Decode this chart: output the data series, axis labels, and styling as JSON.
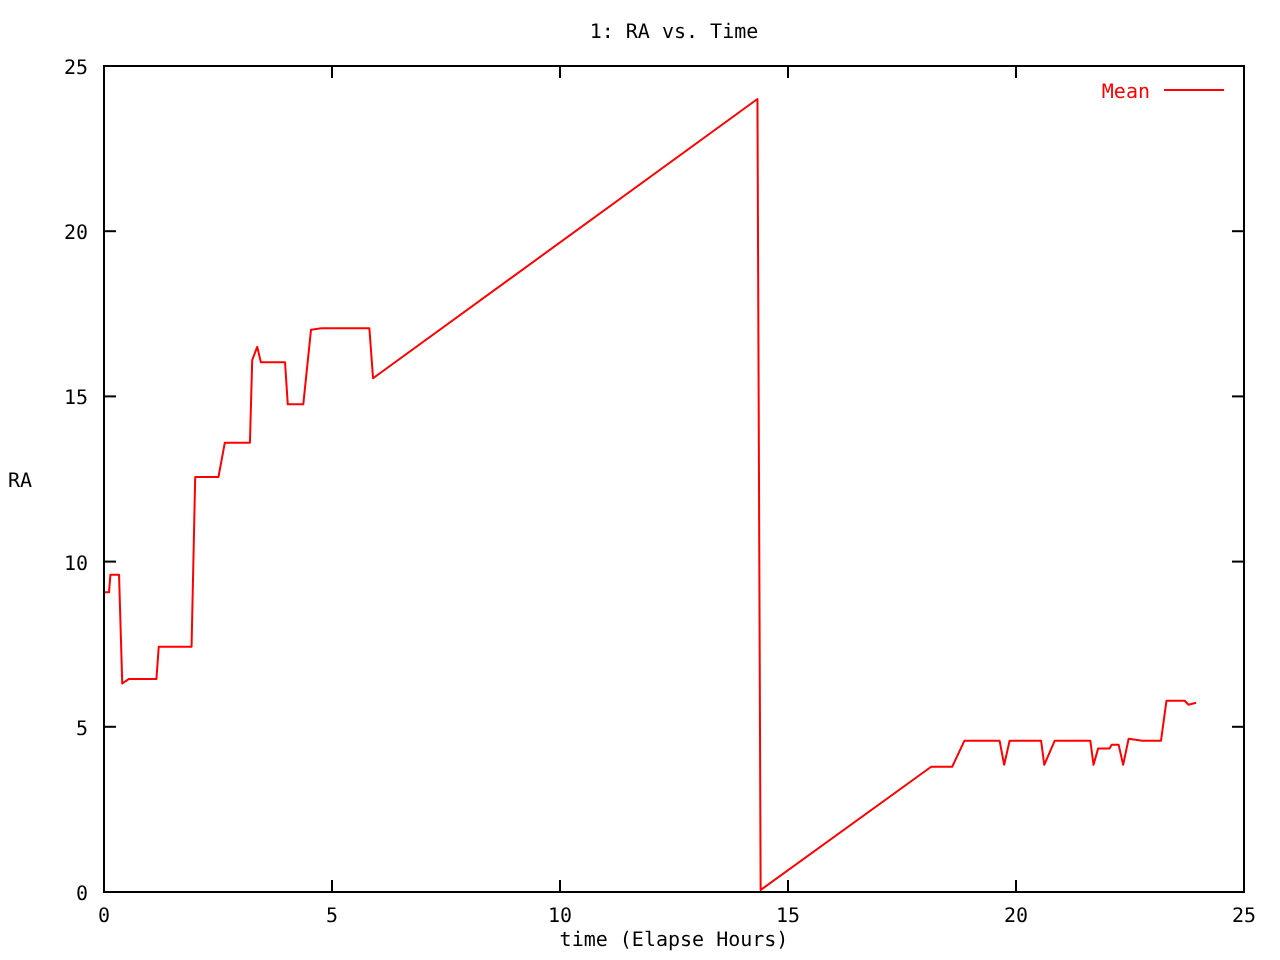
{
  "chart_data": {
    "type": "line",
    "title": "1: RA vs. Time",
    "xlabel": "time (Elapse Hours)",
    "ylabel": "RA",
    "xlim": [
      0,
      25
    ],
    "ylim": [
      0,
      25
    ],
    "xticks": [
      0,
      5,
      10,
      15,
      20,
      25
    ],
    "yticks": [
      0,
      5,
      10,
      15,
      20,
      25
    ],
    "grid": false,
    "legend": "top right",
    "series": [
      {
        "name": "Mean",
        "color": "#ff0000",
        "x": [
          0,
          0.11,
          0.14,
          0.33,
          0.4,
          0.55,
          1.15,
          1.2,
          1.92,
          2.0,
          2.51,
          2.65,
          3.2,
          3.25,
          3.36,
          3.44,
          3.97,
          4.03,
          4.37,
          4.54,
          4.77,
          5.0,
          5.82,
          5.9,
          14.33,
          14.4,
          18.14,
          18.6,
          18.87,
          19.64,
          19.74,
          19.86,
          20.55,
          20.62,
          20.85,
          21.63,
          21.7,
          21.8,
          22.05,
          22.1,
          22.25,
          22.35,
          22.47,
          22.77,
          23.18,
          23.3,
          23.7,
          23.78,
          23.95
        ],
        "values": [
          9.07,
          9.07,
          9.6,
          9.6,
          6.31,
          6.45,
          6.45,
          7.42,
          7.42,
          12.56,
          12.56,
          13.6,
          13.6,
          16.1,
          16.5,
          16.03,
          16.03,
          14.76,
          14.76,
          17.02,
          17.06,
          17.06,
          17.06,
          15.55,
          24.0,
          0.06,
          3.79,
          3.79,
          4.58,
          4.58,
          3.85,
          4.58,
          4.58,
          3.85,
          4.58,
          4.58,
          3.85,
          4.34,
          4.34,
          4.46,
          4.46,
          3.85,
          4.64,
          4.58,
          4.58,
          5.79,
          5.79,
          5.67,
          5.73
        ]
      }
    ]
  }
}
